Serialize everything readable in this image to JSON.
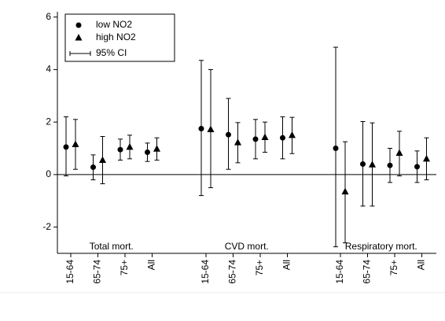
{
  "chart_data": {
    "type": "errorbar",
    "groups": [
      {
        "label": "Total mort.",
        "categories": [
          "15-64",
          "65-74",
          "75+",
          "All"
        ]
      },
      {
        "label": "CVD mort.",
        "categories": [
          "15-64",
          "65-74",
          "75+",
          "All"
        ]
      },
      {
        "label": "Respiratory mort.",
        "categories": [
          "15-64",
          "65-74",
          "75+",
          "All"
        ]
      }
    ],
    "series": [
      {
        "name": "low NO2",
        "marker": "circle",
        "color": "#000000",
        "values": [
          1.05,
          0.28,
          0.95,
          0.85,
          1.75,
          1.52,
          1.35,
          1.4,
          1.0,
          0.4,
          0.35,
          0.3
        ],
        "lower": [
          -0.05,
          -0.2,
          0.55,
          0.5,
          -0.8,
          0.2,
          0.6,
          0.6,
          -2.75,
          -1.2,
          -0.3,
          -0.3
        ],
        "upper": [
          2.2,
          0.75,
          1.35,
          1.2,
          4.35,
          2.9,
          2.1,
          2.2,
          4.85,
          2.02,
          1.0,
          0.9
        ]
      },
      {
        "name": "high NO2",
        "marker": "triangle",
        "color": "#000000",
        "values": [
          1.15,
          0.55,
          1.05,
          0.98,
          1.72,
          1.22,
          1.42,
          1.5,
          -0.65,
          0.38,
          0.82,
          0.6
        ],
        "lower": [
          0.2,
          -0.35,
          0.6,
          0.55,
          -0.5,
          0.45,
          0.85,
          0.8,
          -2.6,
          -1.2,
          -0.05,
          -0.2
        ],
        "upper": [
          2.1,
          1.45,
          1.5,
          1.4,
          4.0,
          1.98,
          2.0,
          2.18,
          1.25,
          1.97,
          1.65,
          1.4
        ]
      }
    ],
    "ci_label": "95% CI",
    "hline": 0,
    "ylim": [
      -3,
      6.2
    ],
    "yticks": [
      6,
      4,
      2,
      0,
      -2
    ],
    "legend": "upper left"
  }
}
